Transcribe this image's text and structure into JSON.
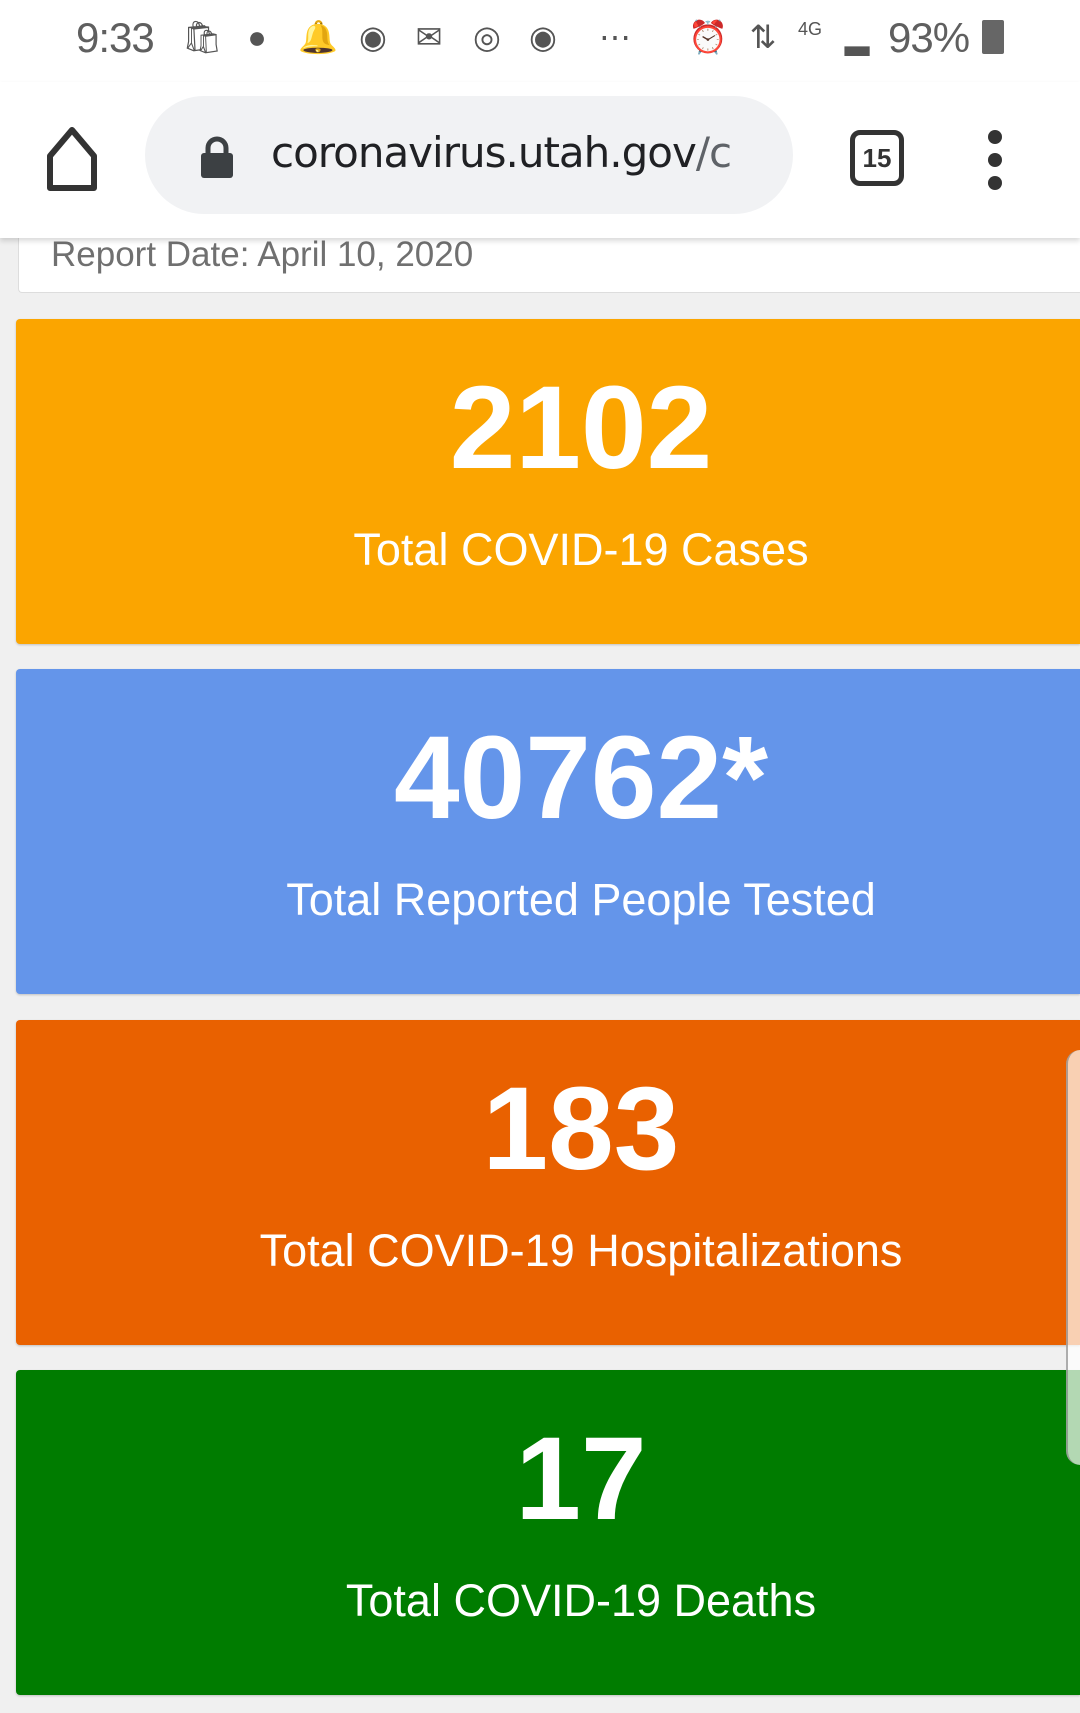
{
  "status_bar": {
    "time": "9:33",
    "battery": "93%",
    "network": "4G",
    "icons": [
      "shopping-bag-icon",
      "saturn-icon",
      "bell-icon",
      "chrome-icon",
      "email-icon",
      "instagram-icon",
      "chrome-icon",
      "more-dots-icon",
      "alarm-icon",
      "wifi-icon",
      "signal-icon",
      "battery-icon"
    ]
  },
  "browser": {
    "url_host": "coronavirus.utah.gov",
    "url_rest": "/c",
    "tab_count": "15"
  },
  "report_date": "Report Date: April 10, 2020",
  "cards": [
    {
      "value": "2102",
      "label": "Total COVID-19 Cases",
      "color": "#fba500"
    },
    {
      "value": "40762*",
      "label": "Total Reported People Tested",
      "color": "#6495ea"
    },
    {
      "value": "183",
      "label": "Total COVID-19 Hospitalizations",
      "color": "#e96100"
    },
    {
      "value": "17",
      "label": "Total COVID-19 Deaths",
      "color": "#007c00"
    }
  ]
}
